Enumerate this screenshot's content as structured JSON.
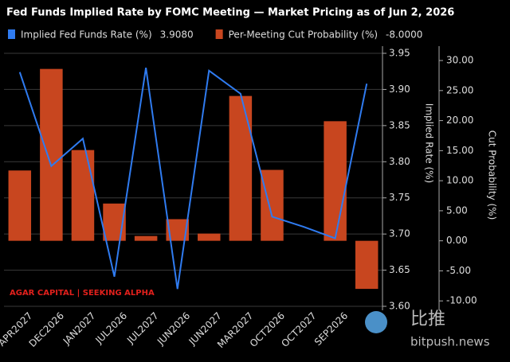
{
  "chart_data": {
    "type": "bar-line",
    "title": "Fed Funds Implied Rate by FOMC Meeting — Market Pricing as of Jun 2, 2026",
    "categories": [
      "APR2027",
      "DEC2026",
      "JAN2027",
      "JUL2026",
      "JUL2027",
      "JUN2026",
      "JUN2027",
      "MAR2027",
      "OCT2026",
      "OCT2027",
      "SEP2026",
      null
    ],
    "series": [
      {
        "name": "Implied Fed Funds Rate (%)",
        "legend_value": "3.9080",
        "type": "line",
        "axis": "y",
        "color": "#2f7bf0",
        "values": [
          3.924,
          3.794,
          3.832,
          3.641,
          3.93,
          3.624,
          3.926,
          3.894,
          3.724,
          3.71,
          3.694,
          3.908
        ]
      },
      {
        "name": "Per-Meeting Cut Probability (%)",
        "legend_value": "-8.0000",
        "type": "bar",
        "axis": "y2",
        "color": "#c8461f",
        "values": [
          11.7,
          28.6,
          15.1,
          6.2,
          0.8,
          3.6,
          1.2,
          24.1,
          11.8,
          0,
          19.9,
          -8.0
        ]
      }
    ],
    "ylabel": "Implied Rate (%)",
    "y2label": "Cut Probability (%)",
    "ylim": [
      3.6,
      3.95
    ],
    "yticks": [
      {
        "value": 3.6,
        "label": "3.60"
      },
      {
        "value": 3.65,
        "label": "3.65"
      },
      {
        "value": 3.7,
        "label": "3.70"
      },
      {
        "value": 3.75,
        "label": "3.75"
      },
      {
        "value": 3.8,
        "label": "3.80"
      },
      {
        "value": 3.85,
        "label": "3.85"
      },
      {
        "value": 3.9,
        "label": "3.90"
      },
      {
        "value": 3.95,
        "label": "3.95"
      }
    ],
    "y2lim": [
      -10.9,
      31.2
    ],
    "y2ticks": [
      {
        "value": -10,
        "label": "-10.00"
      },
      {
        "value": -5,
        "label": "-5.00"
      },
      {
        "value": 0,
        "label": "0.00"
      },
      {
        "value": 5,
        "label": "5.00"
      },
      {
        "value": 10,
        "label": "10.00"
      },
      {
        "value": 15,
        "label": "15.00"
      },
      {
        "value": 20,
        "label": "20.00"
      },
      {
        "value": 25,
        "label": "25.00"
      },
      {
        "value": 30,
        "label": "30.00"
      }
    ],
    "grid": true,
    "annotations": [
      "AGAR CAPITAL | SEEKING ALPHA",
      "比推",
      "bitpush.news"
    ]
  }
}
